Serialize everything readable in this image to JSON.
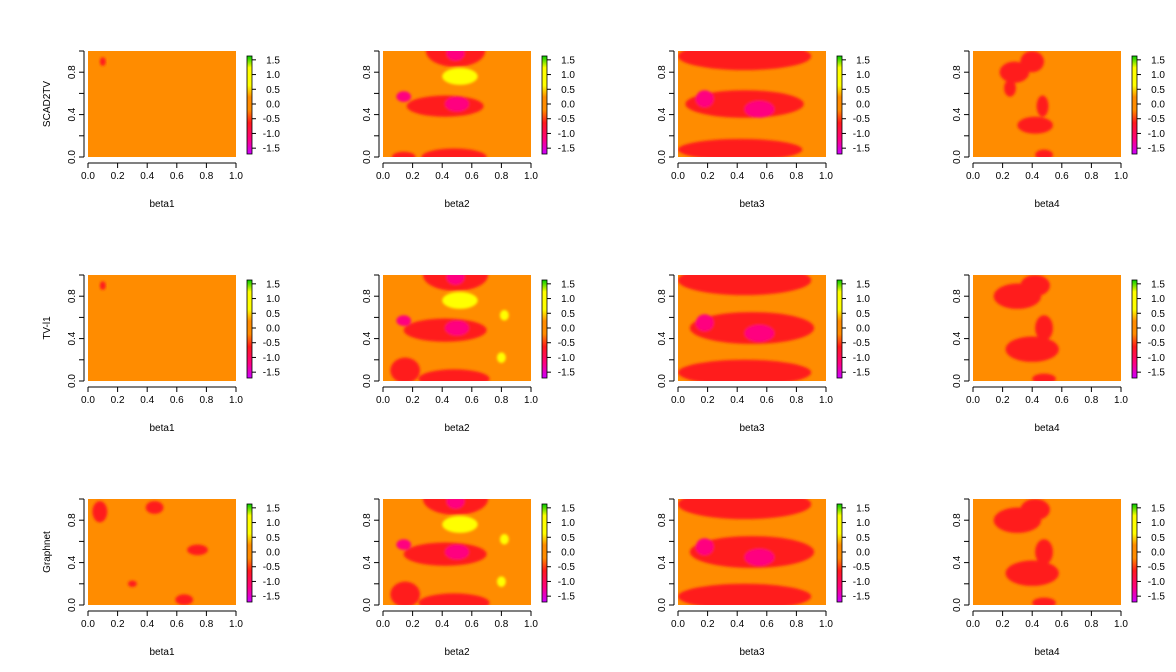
{
  "chart_data": {
    "type": "heatmap",
    "layout": "3 rows x 4 columns of filled-contour heatmaps with color keys",
    "rows": [
      "SCAD2TV",
      "TV-l1",
      "Graphnet"
    ],
    "columns": [
      "beta1",
      "beta2",
      "beta3",
      "beta4"
    ],
    "x_ticks": [
      "0.0",
      "0.2",
      "0.4",
      "0.6",
      "0.8",
      "1.0"
    ],
    "y_ticks": [
      "0.0",
      "0.4",
      "0.8"
    ],
    "xlim": [
      0,
      1
    ],
    "ylim": [
      0,
      1
    ],
    "colorbar_ticks": [
      "1.5",
      "1.0",
      "0.5",
      "0.0",
      "-0.5",
      "-1.0",
      "-1.5"
    ],
    "colorbar_range": [
      -1.8,
      1.8
    ],
    "colors": {
      "background": "#ff8c00",
      "low": "#ff1a1a",
      "lower": "#ff0080",
      "lowest": "#cc00ff",
      "high": "#ffff00",
      "highest": "#00cc00"
    },
    "panels": [
      {
        "row": "SCAD2TV",
        "column": "beta1",
        "regions": [
          {
            "x": 0.1,
            "y": 0.9,
            "rx": 0.02,
            "ry": 0.04,
            "level": "low"
          }
        ]
      },
      {
        "row": "SCAD2TV",
        "column": "beta2",
        "regions": [
          {
            "x": 0.49,
            "y": 1.0,
            "rx": 0.2,
            "ry": 0.15,
            "level": "low"
          },
          {
            "x": 0.49,
            "y": 0.98,
            "rx": 0.06,
            "ry": 0.07,
            "level": "lower"
          },
          {
            "x": 0.52,
            "y": 0.76,
            "rx": 0.12,
            "ry": 0.08,
            "level": "high"
          },
          {
            "x": 0.42,
            "y": 0.48,
            "rx": 0.26,
            "ry": 0.1,
            "level": "low"
          },
          {
            "x": 0.5,
            "y": 0.5,
            "rx": 0.08,
            "ry": 0.07,
            "level": "lower"
          },
          {
            "x": 0.14,
            "y": 0.57,
            "rx": 0.05,
            "ry": 0.05,
            "level": "lower"
          },
          {
            "x": 0.48,
            "y": 0.0,
            "rx": 0.22,
            "ry": 0.08,
            "level": "low"
          },
          {
            "x": 0.14,
            "y": 0.0,
            "rx": 0.08,
            "ry": 0.05,
            "level": "low"
          }
        ]
      },
      {
        "row": "SCAD2TV",
        "column": "beta3",
        "regions": [
          {
            "x": 0.45,
            "y": 0.95,
            "rx": 0.45,
            "ry": 0.13,
            "level": "low"
          },
          {
            "x": 0.45,
            "y": 0.5,
            "rx": 0.4,
            "ry": 0.13,
            "level": "low"
          },
          {
            "x": 0.18,
            "y": 0.55,
            "rx": 0.06,
            "ry": 0.08,
            "level": "lower"
          },
          {
            "x": 0.55,
            "y": 0.45,
            "rx": 0.1,
            "ry": 0.08,
            "level": "lower"
          },
          {
            "x": 0.42,
            "y": 0.07,
            "rx": 0.42,
            "ry": 0.1,
            "level": "low"
          }
        ]
      },
      {
        "row": "SCAD2TV",
        "column": "beta4",
        "regions": [
          {
            "x": 0.28,
            "y": 0.8,
            "rx": 0.1,
            "ry": 0.1,
            "level": "low"
          },
          {
            "x": 0.4,
            "y": 0.9,
            "rx": 0.08,
            "ry": 0.1,
            "level": "low"
          },
          {
            "x": 0.25,
            "y": 0.65,
            "rx": 0.04,
            "ry": 0.08,
            "level": "low"
          },
          {
            "x": 0.42,
            "y": 0.3,
            "rx": 0.12,
            "ry": 0.08,
            "level": "low"
          },
          {
            "x": 0.47,
            "y": 0.48,
            "rx": 0.04,
            "ry": 0.1,
            "level": "low"
          },
          {
            "x": 0.48,
            "y": 0.02,
            "rx": 0.06,
            "ry": 0.05,
            "level": "low"
          }
        ]
      },
      {
        "row": "TV-l1",
        "column": "beta1",
        "regions": [
          {
            "x": 0.1,
            "y": 0.9,
            "rx": 0.02,
            "ry": 0.04,
            "level": "low"
          }
        ]
      },
      {
        "row": "TV-l1",
        "column": "beta2",
        "regions": [
          {
            "x": 0.49,
            "y": 1.0,
            "rx": 0.22,
            "ry": 0.15,
            "level": "low"
          },
          {
            "x": 0.49,
            "y": 0.98,
            "rx": 0.06,
            "ry": 0.07,
            "level": "lower"
          },
          {
            "x": 0.52,
            "y": 0.76,
            "rx": 0.12,
            "ry": 0.08,
            "level": "high"
          },
          {
            "x": 0.42,
            "y": 0.48,
            "rx": 0.28,
            "ry": 0.11,
            "level": "low"
          },
          {
            "x": 0.5,
            "y": 0.5,
            "rx": 0.08,
            "ry": 0.07,
            "level": "lower"
          },
          {
            "x": 0.14,
            "y": 0.57,
            "rx": 0.05,
            "ry": 0.05,
            "level": "lower"
          },
          {
            "x": 0.48,
            "y": 0.02,
            "rx": 0.24,
            "ry": 0.09,
            "level": "low"
          },
          {
            "x": 0.15,
            "y": 0.1,
            "rx": 0.1,
            "ry": 0.12,
            "level": "low"
          },
          {
            "x": 0.82,
            "y": 0.62,
            "rx": 0.03,
            "ry": 0.05,
            "level": "high"
          },
          {
            "x": 0.8,
            "y": 0.22,
            "rx": 0.03,
            "ry": 0.05,
            "level": "high"
          }
        ]
      },
      {
        "row": "TV-l1",
        "column": "beta3",
        "regions": [
          {
            "x": 0.45,
            "y": 0.95,
            "rx": 0.45,
            "ry": 0.14,
            "level": "low"
          },
          {
            "x": 0.5,
            "y": 0.5,
            "rx": 0.42,
            "ry": 0.15,
            "level": "low"
          },
          {
            "x": 0.18,
            "y": 0.55,
            "rx": 0.06,
            "ry": 0.08,
            "level": "lower"
          },
          {
            "x": 0.55,
            "y": 0.45,
            "rx": 0.1,
            "ry": 0.08,
            "level": "lower"
          },
          {
            "x": 0.45,
            "y": 0.08,
            "rx": 0.45,
            "ry": 0.12,
            "level": "low"
          }
        ]
      },
      {
        "row": "TV-l1",
        "column": "beta4",
        "regions": [
          {
            "x": 0.3,
            "y": 0.8,
            "rx": 0.16,
            "ry": 0.12,
            "level": "low"
          },
          {
            "x": 0.42,
            "y": 0.9,
            "rx": 0.1,
            "ry": 0.1,
            "level": "low"
          },
          {
            "x": 0.4,
            "y": 0.3,
            "rx": 0.18,
            "ry": 0.12,
            "level": "low"
          },
          {
            "x": 0.48,
            "y": 0.5,
            "rx": 0.06,
            "ry": 0.12,
            "level": "low"
          },
          {
            "x": 0.48,
            "y": 0.02,
            "rx": 0.08,
            "ry": 0.05,
            "level": "low"
          }
        ]
      },
      {
        "row": "Graphnet",
        "column": "beta1",
        "regions": [
          {
            "x": 0.08,
            "y": 0.88,
            "rx": 0.05,
            "ry": 0.1,
            "level": "low"
          },
          {
            "x": 0.45,
            "y": 0.92,
            "rx": 0.06,
            "ry": 0.06,
            "level": "low"
          },
          {
            "x": 0.74,
            "y": 0.52,
            "rx": 0.07,
            "ry": 0.05,
            "level": "low"
          },
          {
            "x": 0.65,
            "y": 0.05,
            "rx": 0.06,
            "ry": 0.05,
            "level": "low"
          },
          {
            "x": 0.3,
            "y": 0.2,
            "rx": 0.03,
            "ry": 0.03,
            "level": "low"
          }
        ]
      },
      {
        "row": "Graphnet",
        "column": "beta2",
        "regions": [
          {
            "x": 0.49,
            "y": 1.0,
            "rx": 0.22,
            "ry": 0.15,
            "level": "low"
          },
          {
            "x": 0.49,
            "y": 0.98,
            "rx": 0.06,
            "ry": 0.07,
            "level": "lower"
          },
          {
            "x": 0.52,
            "y": 0.76,
            "rx": 0.12,
            "ry": 0.08,
            "level": "high"
          },
          {
            "x": 0.42,
            "y": 0.48,
            "rx": 0.28,
            "ry": 0.11,
            "level": "low"
          },
          {
            "x": 0.5,
            "y": 0.5,
            "rx": 0.08,
            "ry": 0.07,
            "level": "lower"
          },
          {
            "x": 0.14,
            "y": 0.57,
            "rx": 0.05,
            "ry": 0.05,
            "level": "lower"
          },
          {
            "x": 0.48,
            "y": 0.02,
            "rx": 0.24,
            "ry": 0.09,
            "level": "low"
          },
          {
            "x": 0.15,
            "y": 0.1,
            "rx": 0.1,
            "ry": 0.12,
            "level": "low"
          },
          {
            "x": 0.82,
            "y": 0.62,
            "rx": 0.03,
            "ry": 0.05,
            "level": "high"
          },
          {
            "x": 0.8,
            "y": 0.22,
            "rx": 0.03,
            "ry": 0.05,
            "level": "high"
          }
        ]
      },
      {
        "row": "Graphnet",
        "column": "beta3",
        "regions": [
          {
            "x": 0.45,
            "y": 0.95,
            "rx": 0.45,
            "ry": 0.14,
            "level": "low"
          },
          {
            "x": 0.5,
            "y": 0.5,
            "rx": 0.42,
            "ry": 0.15,
            "level": "low"
          },
          {
            "x": 0.18,
            "y": 0.55,
            "rx": 0.06,
            "ry": 0.08,
            "level": "lower"
          },
          {
            "x": 0.55,
            "y": 0.45,
            "rx": 0.1,
            "ry": 0.08,
            "level": "lower"
          },
          {
            "x": 0.45,
            "y": 0.08,
            "rx": 0.45,
            "ry": 0.12,
            "level": "low"
          }
        ]
      },
      {
        "row": "Graphnet",
        "column": "beta4",
        "regions": [
          {
            "x": 0.3,
            "y": 0.8,
            "rx": 0.16,
            "ry": 0.12,
            "level": "low"
          },
          {
            "x": 0.42,
            "y": 0.9,
            "rx": 0.1,
            "ry": 0.1,
            "level": "low"
          },
          {
            "x": 0.4,
            "y": 0.3,
            "rx": 0.18,
            "ry": 0.12,
            "level": "low"
          },
          {
            "x": 0.48,
            "y": 0.5,
            "rx": 0.06,
            "ry": 0.12,
            "level": "low"
          },
          {
            "x": 0.48,
            "y": 0.02,
            "rx": 0.08,
            "ry": 0.05,
            "level": "low"
          }
        ]
      }
    ]
  }
}
